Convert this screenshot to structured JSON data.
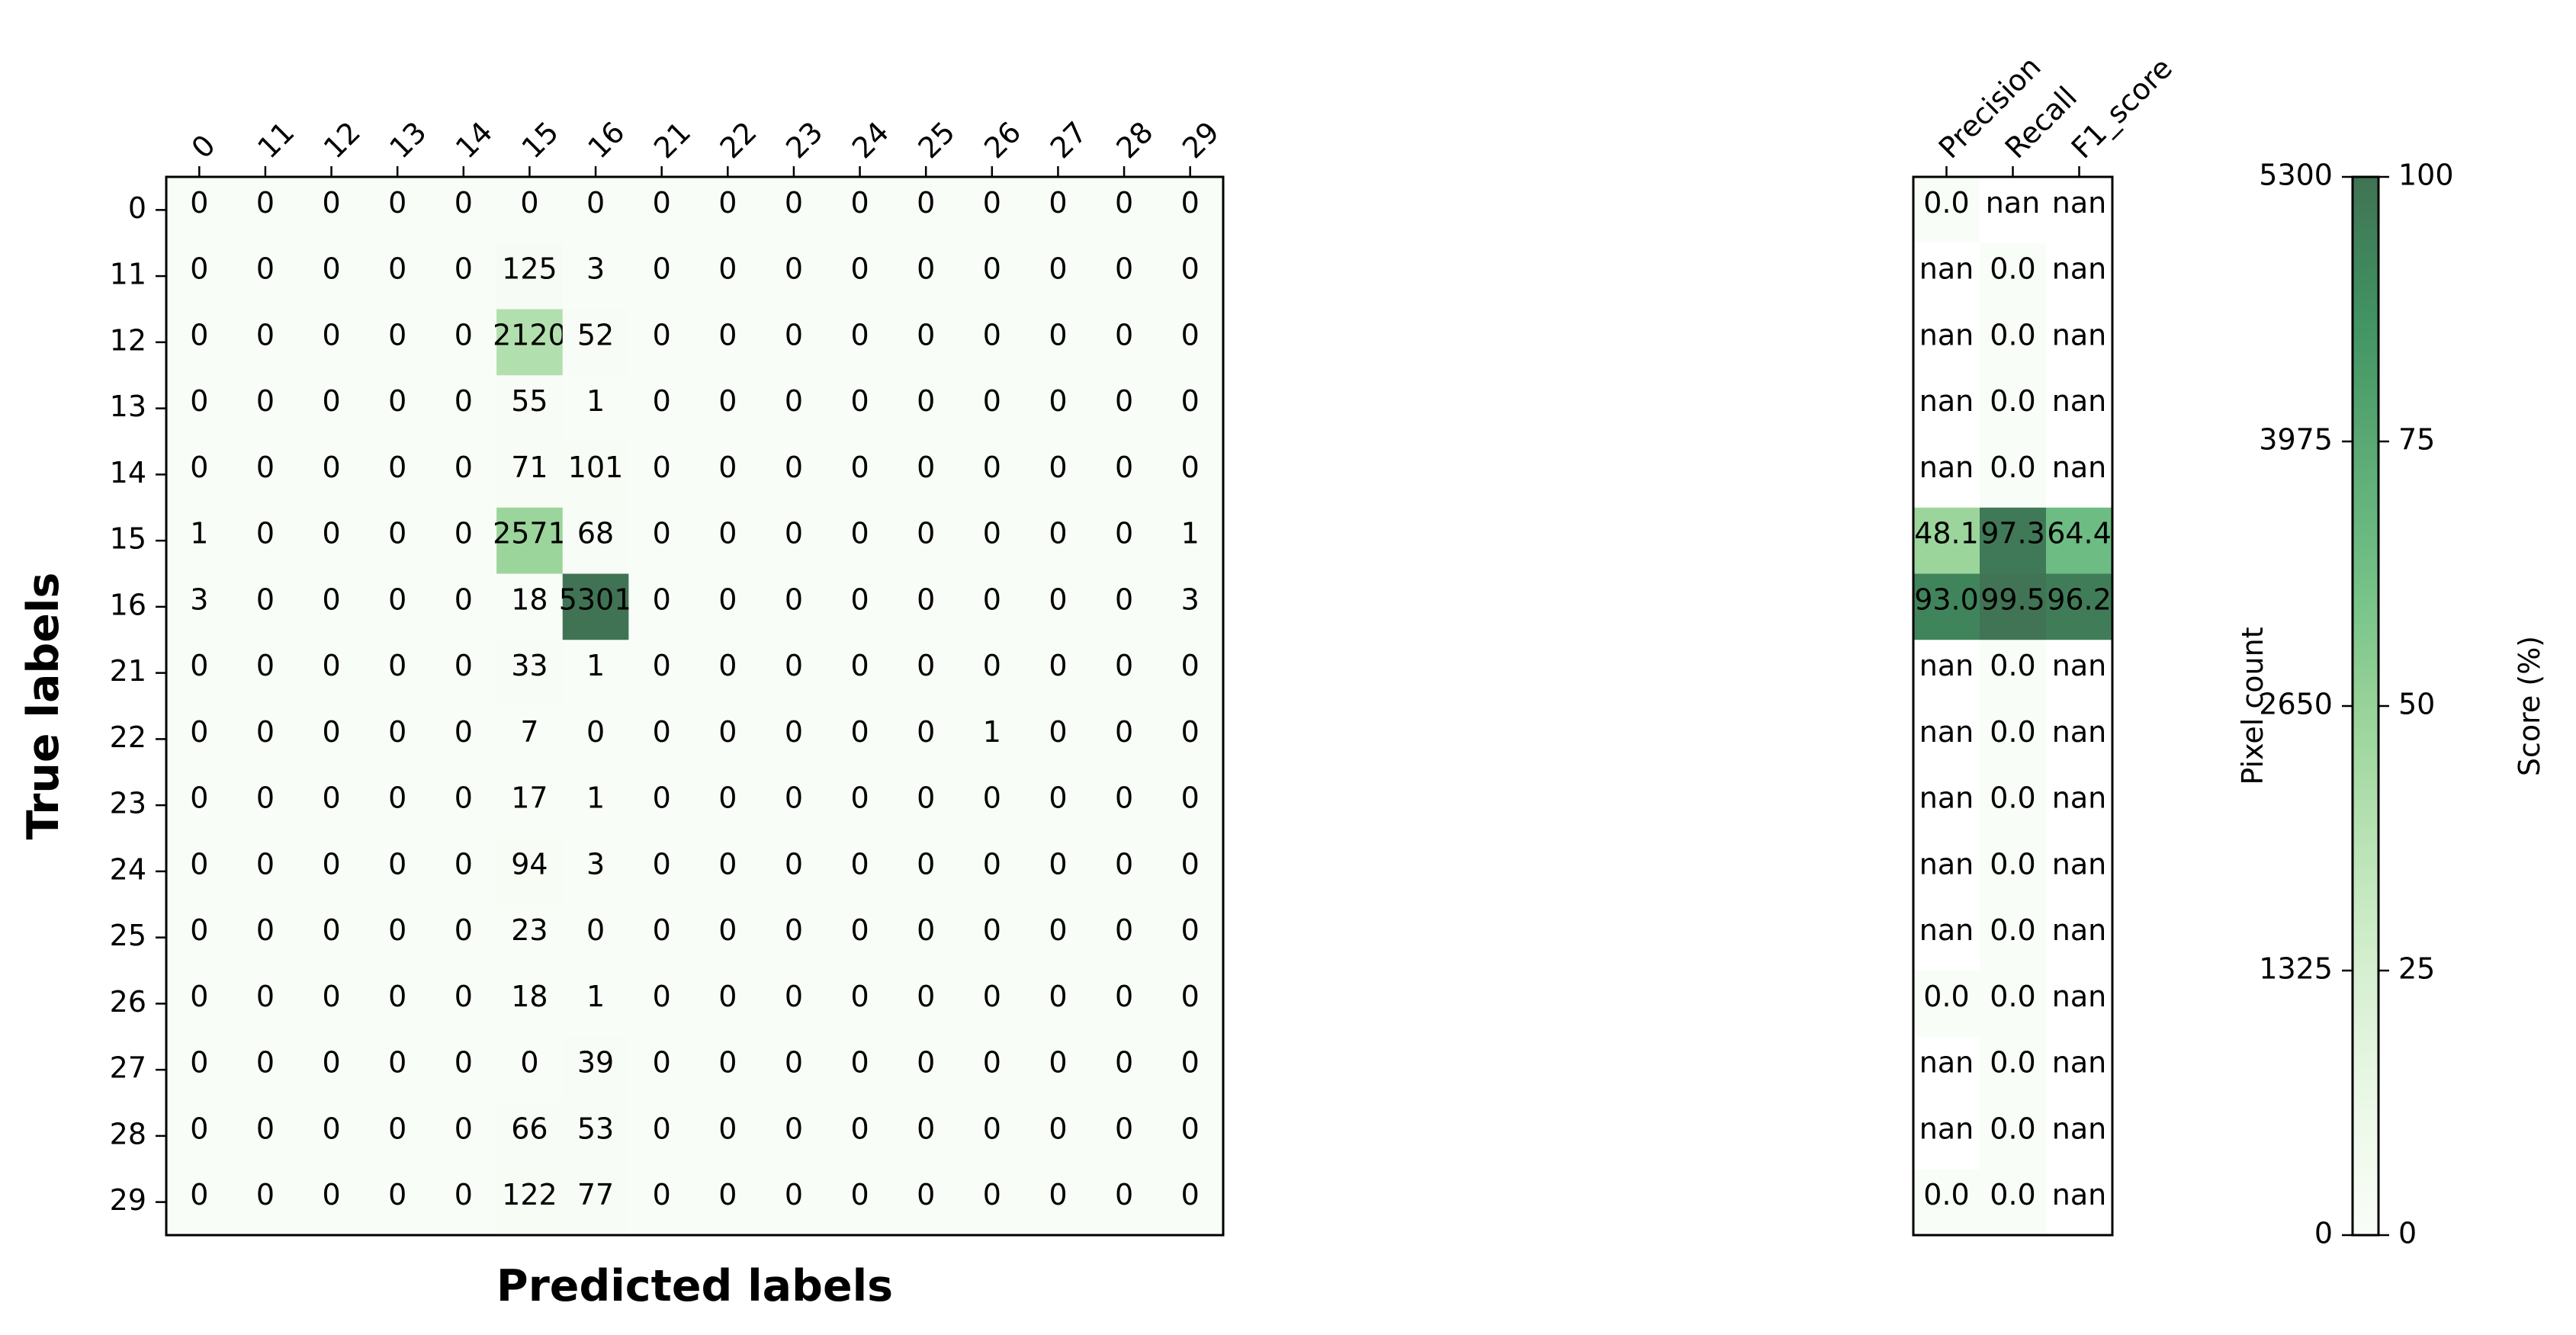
{
  "chart_data": [
    {
      "type": "heatmap",
      "xlabel": "Predicted labels",
      "ylabel": "True labels",
      "x_categories": [
        "0",
        "11",
        "12",
        "13",
        "14",
        "15",
        "16",
        "21",
        "22",
        "23",
        "24",
        "25",
        "26",
        "27",
        "28",
        "29"
      ],
      "y_categories": [
        "0",
        "11",
        "12",
        "13",
        "14",
        "15",
        "16",
        "21",
        "22",
        "23",
        "24",
        "25",
        "26",
        "27",
        "28",
        "29"
      ],
      "values": [
        [
          0,
          0,
          0,
          0,
          0,
          0,
          0,
          0,
          0,
          0,
          0,
          0,
          0,
          0,
          0,
          0
        ],
        [
          0,
          0,
          0,
          0,
          0,
          125,
          3,
          0,
          0,
          0,
          0,
          0,
          0,
          0,
          0,
          0
        ],
        [
          0,
          0,
          0,
          0,
          0,
          2120,
          52,
          0,
          0,
          0,
          0,
          0,
          0,
          0,
          0,
          0
        ],
        [
          0,
          0,
          0,
          0,
          0,
          55,
          1,
          0,
          0,
          0,
          0,
          0,
          0,
          0,
          0,
          0
        ],
        [
          0,
          0,
          0,
          0,
          0,
          71,
          101,
          0,
          0,
          0,
          0,
          0,
          0,
          0,
          0,
          0
        ],
        [
          1,
          0,
          0,
          0,
          0,
          2571,
          68,
          0,
          0,
          0,
          0,
          0,
          0,
          0,
          0,
          1
        ],
        [
          3,
          0,
          0,
          0,
          0,
          18,
          5301,
          0,
          0,
          0,
          0,
          0,
          0,
          0,
          0,
          3
        ],
        [
          0,
          0,
          0,
          0,
          0,
          33,
          1,
          0,
          0,
          0,
          0,
          0,
          0,
          0,
          0,
          0
        ],
        [
          0,
          0,
          0,
          0,
          0,
          7,
          0,
          0,
          0,
          0,
          0,
          0,
          1,
          0,
          0,
          0
        ],
        [
          0,
          0,
          0,
          0,
          0,
          17,
          1,
          0,
          0,
          0,
          0,
          0,
          0,
          0,
          0,
          0
        ],
        [
          0,
          0,
          0,
          0,
          0,
          94,
          3,
          0,
          0,
          0,
          0,
          0,
          0,
          0,
          0,
          0
        ],
        [
          0,
          0,
          0,
          0,
          0,
          23,
          0,
          0,
          0,
          0,
          0,
          0,
          0,
          0,
          0,
          0
        ],
        [
          0,
          0,
          0,
          0,
          0,
          18,
          1,
          0,
          0,
          0,
          0,
          0,
          0,
          0,
          0,
          0
        ],
        [
          0,
          0,
          0,
          0,
          0,
          0,
          39,
          0,
          0,
          0,
          0,
          0,
          0,
          0,
          0,
          0
        ],
        [
          0,
          0,
          0,
          0,
          0,
          66,
          53,
          0,
          0,
          0,
          0,
          0,
          0,
          0,
          0,
          0
        ],
        [
          0,
          0,
          0,
          0,
          0,
          122,
          77,
          0,
          0,
          0,
          0,
          0,
          0,
          0,
          0,
          0
        ]
      ],
      "vmin": 0,
      "vmax": 5300,
      "colormap": "Greens",
      "colorbar": {
        "label": "Pixel count",
        "ticks": [
          "0",
          "1325",
          "2650",
          "3975",
          "5300"
        ]
      }
    },
    {
      "type": "heatmap",
      "x_categories": [
        "Precision",
        "Recall",
        "F1_score"
      ],
      "y_categories": [
        "0",
        "11",
        "12",
        "13",
        "14",
        "15",
        "16",
        "21",
        "22",
        "23",
        "24",
        "25",
        "26",
        "27",
        "28",
        "29"
      ],
      "values": [
        [
          "0.0",
          "nan",
          "nan"
        ],
        [
          "nan",
          "0.0",
          "nan"
        ],
        [
          "nan",
          "0.0",
          "nan"
        ],
        [
          "nan",
          "0.0",
          "nan"
        ],
        [
          "nan",
          "0.0",
          "nan"
        ],
        [
          "48.1",
          "97.3",
          "64.4"
        ],
        [
          "93.0",
          "99.5",
          "96.2"
        ],
        [
          "nan",
          "0.0",
          "nan"
        ],
        [
          "nan",
          "0.0",
          "nan"
        ],
        [
          "nan",
          "0.0",
          "nan"
        ],
        [
          "nan",
          "0.0",
          "nan"
        ],
        [
          "nan",
          "0.0",
          "nan"
        ],
        [
          "0.0",
          "0.0",
          "nan"
        ],
        [
          "nan",
          "0.0",
          "nan"
        ],
        [
          "nan",
          "0.0",
          "nan"
        ],
        [
          "0.0",
          "0.0",
          "nan"
        ]
      ],
      "vmin": 0,
      "vmax": 100,
      "colormap": "Greens",
      "colorbar": {
        "label": "Score (%)",
        "ticks": [
          "0",
          "25",
          "50",
          "75",
          "100"
        ]
      }
    }
  ]
}
